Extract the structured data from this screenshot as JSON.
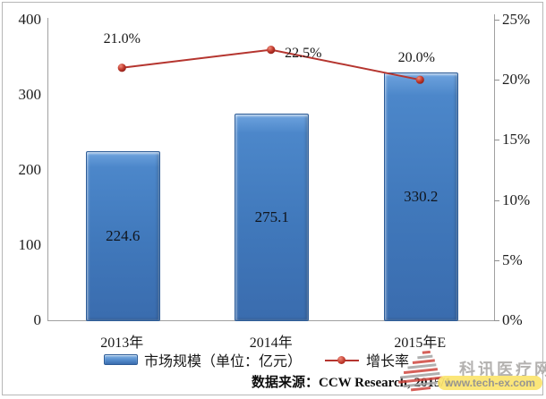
{
  "chart_data": {
    "type": "bar",
    "categories": [
      "2013年",
      "2014年",
      "2015年E"
    ],
    "series": [
      {
        "name": "市场规模（单位：亿元）",
        "type": "bar",
        "axis": "left",
        "values": [
          224.6,
          275.1,
          330.2
        ],
        "labels": [
          "224.6",
          "275.1",
          "330.2"
        ],
        "color": "#3d73b4"
      },
      {
        "name": "增长率",
        "type": "line",
        "axis": "right",
        "values": [
          21.0,
          22.5,
          20.0
        ],
        "labels": [
          "21.0%",
          "22.5%",
          "20.0%"
        ],
        "color": "#b5352f"
      }
    ],
    "left_axis": {
      "min": 0,
      "max": 400,
      "ticks": [
        400,
        300,
        200,
        100,
        0
      ]
    },
    "right_axis": {
      "min": 0,
      "max": 25,
      "ticks": [
        "25%",
        "20%",
        "15%",
        "10%",
        "5%",
        "0%"
      ]
    },
    "legend_position": "bottom",
    "grid": false,
    "title": ""
  },
  "source_note": "数据来源：CCW Research, 2015/1",
  "watermark": {
    "site_name": "科讯医疗网",
    "site_url": "www.tech-ex.com"
  },
  "colors": {
    "bar_fill": "#4078bb",
    "bar_border": "#2d5c97",
    "line": "#b5352f",
    "axis": "#a0a0a0",
    "text": "#1f1f1f",
    "watermark_pill": "#fbe46e",
    "watermark_text": "#b3b1af"
  }
}
